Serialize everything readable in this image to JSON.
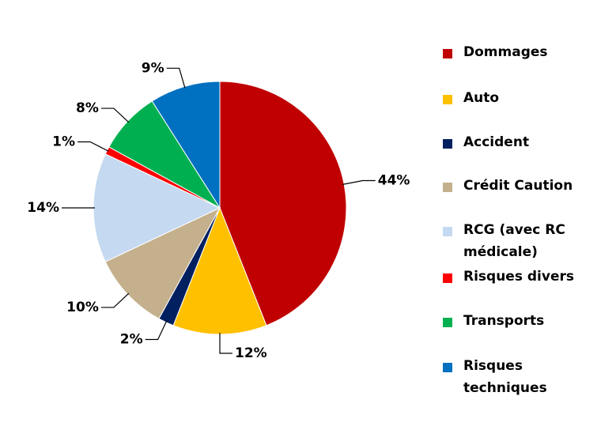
{
  "chart_data": {
    "type": "pie",
    "categories": [
      "Dommages",
      "Auto",
      "Accident",
      "Crédit Caution",
      "RCG (avec RC médicale)",
      "Risques divers",
      "Transports",
      "Risques techniques"
    ],
    "values": [
      44,
      12,
      2,
      10,
      14,
      1,
      8,
      9
    ],
    "value_labels": [
      "44%",
      "12%",
      "2%",
      "10%",
      "14%",
      "1%",
      "8%",
      "9%"
    ],
    "colors": [
      "#c00000",
      "#ffc000",
      "#002060",
      "#c4b08c",
      "#c5d9f1",
      "#ff0000",
      "#00b050",
      "#0070c0"
    ]
  }
}
